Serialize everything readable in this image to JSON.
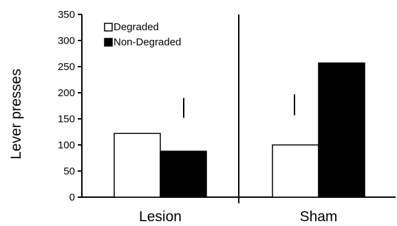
{
  "chart_data": {
    "type": "bar",
    "title": "",
    "xlabel": "",
    "ylabel": "Lever presses",
    "ylim": [
      0,
      350
    ],
    "yticks": [
      0,
      50,
      100,
      150,
      200,
      250,
      300,
      350
    ],
    "categories": [
      "Lesion",
      "Sham"
    ],
    "series": [
      {
        "name": "Degraded",
        "values": [
          122,
          100
        ],
        "color": "#ffffff"
      },
      {
        "name": "Non-Degraded",
        "values": [
          88,
          257
        ],
        "color": "#000000"
      }
    ],
    "error_bars": [
      {
        "category": "Lesion",
        "low": 152,
        "high": 190
      },
      {
        "category": "Sham",
        "low": 157,
        "high": 197
      }
    ],
    "legend_position": "top-left",
    "grid": false
  }
}
